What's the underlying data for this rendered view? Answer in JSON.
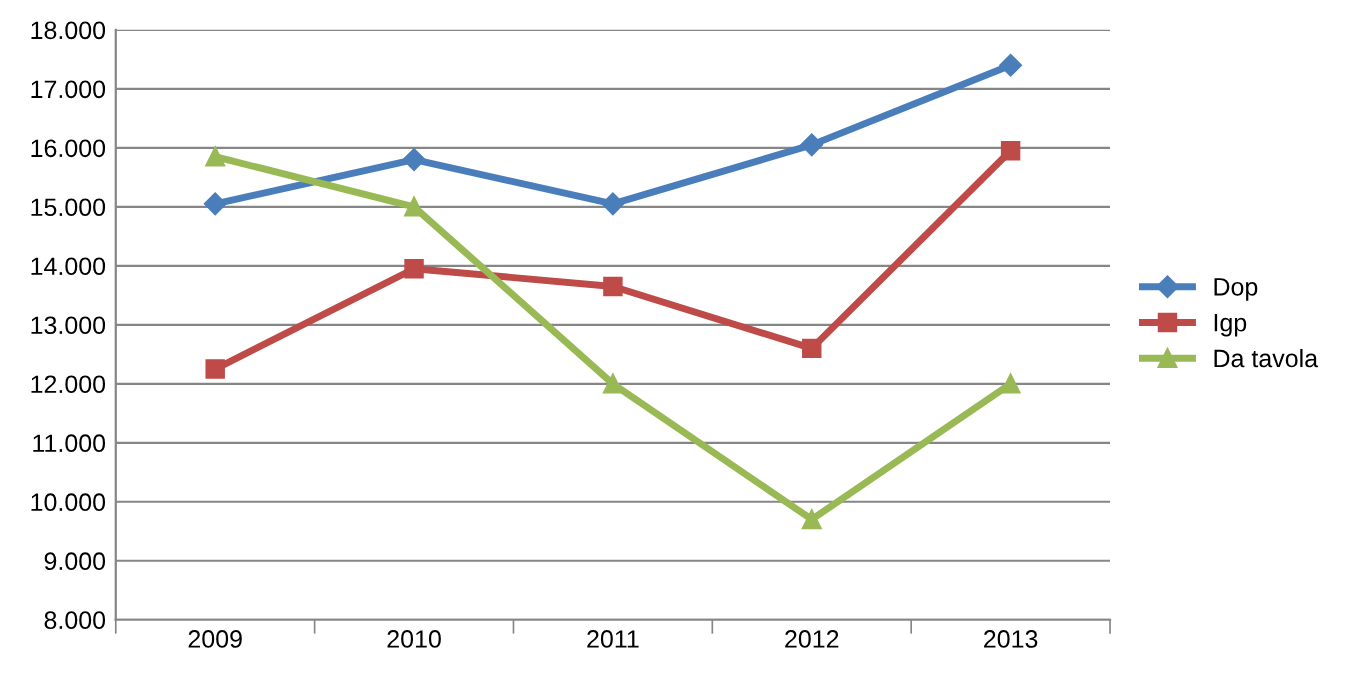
{
  "chart_data": {
    "type": "line",
    "categories": [
      "2009",
      "2010",
      "2011",
      "2012",
      "2013"
    ],
    "series": [
      {
        "name": "Dop",
        "color": "#4a7ebb",
        "marker": "diamond",
        "values": [
          15050,
          15800,
          15050,
          16050,
          17400
        ]
      },
      {
        "name": "Igp",
        "color": "#be4b48",
        "marker": "square",
        "values": [
          12250,
          13950,
          13650,
          12600,
          15950
        ]
      },
      {
        "name": "Da tavola",
        "color": "#98b954",
        "marker": "triangle",
        "values": [
          15850,
          15000,
          12000,
          9700,
          12000
        ]
      }
    ],
    "ylim": [
      8000,
      18000
    ],
    "yticks": [
      {
        "value": 8000,
        "label": "8.000"
      },
      {
        "value": 9000,
        "label": "9.000"
      },
      {
        "value": 10000,
        "label": "10.000"
      },
      {
        "value": 11000,
        "label": "11.000"
      },
      {
        "value": 12000,
        "label": "12.000"
      },
      {
        "value": 13000,
        "label": "13.000"
      },
      {
        "value": 14000,
        "label": "14.000"
      },
      {
        "value": 15000,
        "label": "15.000"
      },
      {
        "value": 16000,
        "label": "16.000"
      },
      {
        "value": 17000,
        "label": "17.000"
      },
      {
        "value": 18000,
        "label": "18.000"
      }
    ],
    "grid": "y",
    "legend": "right",
    "line_style": "solid"
  }
}
